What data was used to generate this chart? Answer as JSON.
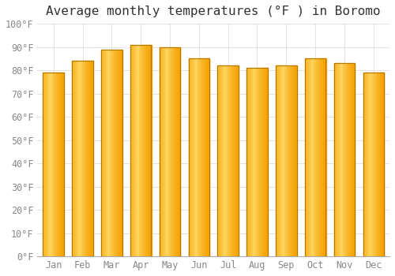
{
  "title": "Average monthly temperatures (°F ) in Boromo",
  "months": [
    "Jan",
    "Feb",
    "Mar",
    "Apr",
    "May",
    "Jun",
    "Jul",
    "Aug",
    "Sep",
    "Oct",
    "Nov",
    "Dec"
  ],
  "values": [
    79,
    84,
    89,
    91,
    90,
    85,
    82,
    81,
    82,
    85,
    83,
    79
  ],
  "ylim": [
    0,
    100
  ],
  "background_color": "#FFFFFF",
  "grid_color": "#DDDDDD",
  "title_fontsize": 11.5,
  "tick_fontsize": 8.5,
  "bar_color_light": "#FFD966",
  "bar_color_dark": "#F5A000",
  "bar_border_color": "#B07800"
}
